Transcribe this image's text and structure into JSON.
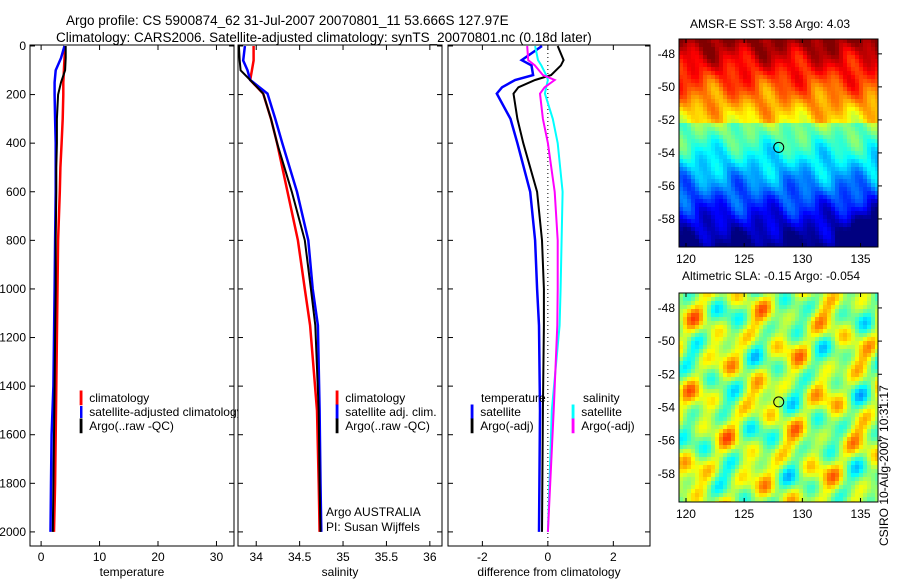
{
  "header": {
    "line1": "Argo profile: CS 5900874_62 31-Jul-2007 20070801_11 53.666S 127.97E",
    "line2": "Climatology: CARS2006. Satellite-adjusted climatology: synTS_20070801.nc (0.18d later)"
  },
  "colors": {
    "climatology": "#ff0000",
    "satellite": "#0000ff",
    "argo": "#000000",
    "sal_satellite": "#00ffff",
    "sal_argo": "#ff00ff"
  },
  "chart_data": [
    {
      "type": "line",
      "id": "temperature",
      "xlabel": "temperature",
      "ylabel": "",
      "xlim": [
        -1.9,
        33
      ],
      "ylim": [
        2058,
        -4
      ],
      "xticks": [
        "0",
        "10",
        "20",
        "30"
      ],
      "yticks": [
        "0",
        "200",
        "400",
        "600",
        "800",
        "1000",
        "1200",
        "1400",
        "1600",
        "1800",
        "2000"
      ],
      "depth": [
        0,
        50,
        100,
        150,
        200,
        300,
        400,
        500,
        600,
        800,
        1000,
        1200,
        1400,
        1600,
        1800,
        2000
      ],
      "series": [
        {
          "name": "climatology",
          "color": "#ff0000",
          "values": [
            4.1,
            4.0,
            3.9,
            3.8,
            3.8,
            3.7,
            3.5,
            3.3,
            3.2,
            2.9,
            2.8,
            2.7,
            2.6,
            2.5,
            2.4,
            2.2
          ]
        },
        {
          "name": "satellite-adjusted climatology",
          "color": "#0000ff",
          "values": [
            4.0,
            3.4,
            2.5,
            2.3,
            2.3,
            2.4,
            2.5,
            2.5,
            2.5,
            2.4,
            2.3,
            2.2,
            2.1,
            1.8,
            1.7,
            1.6
          ]
        },
        {
          "name": "Argo(..raw -QC)",
          "color": "#000000",
          "values": [
            4.2,
            4.2,
            4.1,
            3.4,
            2.9,
            2.7,
            2.7,
            2.6,
            2.6,
            2.5,
            2.5,
            2.4,
            2.3,
            2.2,
            2.1,
            2.0
          ]
        }
      ]
    },
    {
      "type": "line",
      "id": "salinity",
      "xlabel": "salinity",
      "xlim": [
        33.79,
        36.14
      ],
      "ylim": [
        2058,
        -4
      ],
      "xticks": [
        "34",
        "34.5",
        "35",
        "35.5",
        "36"
      ],
      "depth": [
        0,
        60,
        100,
        140,
        196,
        300,
        400,
        600,
        800,
        1000,
        1150,
        1500,
        1800,
        2000
      ],
      "series": [
        {
          "name": "climatology",
          "color": "#ff0000",
          "values": [
            33.97,
            33.97,
            33.95,
            33.93,
            34.08,
            34.17,
            34.24,
            34.36,
            34.48,
            34.56,
            34.62,
            34.7,
            34.72,
            34.73
          ]
        },
        {
          "name": "satellite adj. clim.",
          "color": "#0000ff",
          "values": [
            33.87,
            33.85,
            33.9,
            33.93,
            34.13,
            34.22,
            34.3,
            34.47,
            34.6,
            34.65,
            34.71,
            34.73,
            34.74,
            34.75
          ]
        },
        {
          "name": "Argo(..raw -QC)",
          "color": "#000000",
          "values": [
            33.8,
            33.81,
            33.82,
            33.93,
            34.08,
            34.17,
            34.24,
            34.41,
            34.56,
            34.63,
            34.68,
            34.72,
            34.73,
            34.74
          ]
        }
      ],
      "annotation": [
        "Argo AUSTRALIA",
        "PI: Susan Wijffels"
      ]
    },
    {
      "type": "line",
      "id": "difference",
      "xlabel": "difference from climatology",
      "xlim": [
        -3.05,
        3.12
      ],
      "ylim": [
        2058,
        -4
      ],
      "xticks": [
        "-2",
        "0",
        "2"
      ],
      "depth": [
        0,
        58,
        80,
        120,
        140,
        170,
        196,
        300,
        400,
        600,
        800,
        1000,
        1150,
        1500,
        2000
      ],
      "series": [
        {
          "group": "temperature",
          "name": "satellite",
          "color": "#0000ff",
          "values": [
            -0.18,
            -0.8,
            -0.5,
            -0.45,
            -1.0,
            -1.4,
            -1.56,
            -1.14,
            -0.93,
            -0.54,
            -0.39,
            -0.33,
            -0.27,
            -0.24,
            -0.27
          ]
        },
        {
          "group": "temperature",
          "name": "Argo(-adj)",
          "color": "#000000",
          "values": [
            0.3,
            0.48,
            0.4,
            0.1,
            -0.39,
            -0.9,
            -1.05,
            -0.93,
            -0.75,
            -0.33,
            -0.18,
            -0.12,
            -0.12,
            -0.15,
            -0.18
          ]
        },
        {
          "group": "salinity",
          "name": "satellite",
          "color": "#00ffff",
          "values": [
            -0.39,
            -0.3,
            -0.2,
            -0.05,
            0.0,
            -0.05,
            -0.09,
            0.15,
            0.3,
            0.45,
            0.42,
            0.39,
            0.36,
            0.12,
            0.0
          ]
        },
        {
          "group": "salinity",
          "name": "Argo(-adj)",
          "color": "#ff00ff",
          "values": [
            -0.63,
            -0.6,
            -0.4,
            -0.15,
            0.21,
            -0.1,
            -0.24,
            -0.15,
            0.0,
            0.21,
            0.3,
            0.3,
            0.29,
            0.18,
            0.0
          ]
        }
      ],
      "legend_headers": [
        "temperature",
        "salinity"
      ]
    }
  ],
  "maps": [
    {
      "id": "sst",
      "title": "AMSR-E SST: 3.58 Argo: 4.03",
      "xticks": [
        "120",
        "125",
        "130",
        "135"
      ],
      "yticks": [
        "-48",
        "-50",
        "-52",
        "-54",
        "-56",
        "-58"
      ],
      "lonlim": [
        119.4,
        136.5
      ],
      "latlim": [
        -47.1,
        -59.7
      ],
      "argo_lon": 127.97,
      "argo_lat": -53.666
    },
    {
      "id": "sla",
      "title": "Altimetric SLA: -0.15 Argo: -0.054",
      "xticks": [
        "120",
        "125",
        "130",
        "135"
      ],
      "yticks": [
        "-48",
        "-50",
        "-52",
        "-54",
        "-56",
        "-58"
      ],
      "lonlim": [
        119.4,
        136.5
      ],
      "latlim": [
        -47.1,
        -59.7
      ],
      "argo_lon": 127.97,
      "argo_lat": -53.666
    }
  ],
  "footer": {
    "stamp": "CSIRO 10-Aug-2007 10:31:17"
  }
}
